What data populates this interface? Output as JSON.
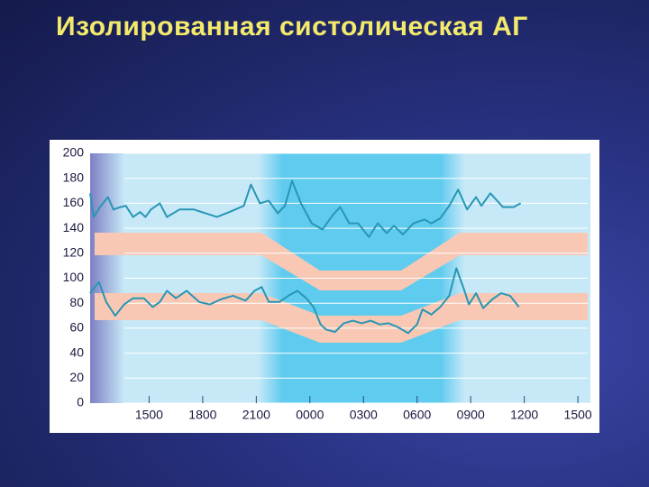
{
  "chart_data": {
    "type": "line",
    "title": "Изолированная систолическая АГ",
    "ylim": [
      0,
      200
    ],
    "yticks": [
      0,
      20,
      40,
      60,
      80,
      100,
      120,
      140,
      160,
      180,
      200
    ],
    "xlim": [
      11.7,
      39.7
    ],
    "xticks": [
      {
        "value": 15,
        "label": "1500"
      },
      {
        "value": 18,
        "label": "1800"
      },
      {
        "value": 21,
        "label": "2100"
      },
      {
        "value": 24,
        "label": "0000"
      },
      {
        "value": 27,
        "label": "0300"
      },
      {
        "value": 30,
        "label": "0600"
      },
      {
        "value": 33,
        "label": "0900"
      },
      {
        "value": 36,
        "label": "1200"
      },
      {
        "value": 39,
        "label": "1500"
      }
    ],
    "grid": true,
    "series": [
      {
        "color": "#2896b4",
        "x": [
          11.7,
          11.9,
          12.3,
          12.7,
          13.0,
          13.4,
          13.7,
          14.1,
          14.5,
          14.8,
          15.1,
          15.6,
          16.0,
          16.7,
          17.5,
          18.8,
          19.5,
          20.3,
          20.7,
          21.2,
          21.7,
          22.2,
          22.6,
          23.0,
          23.5,
          24.1,
          24.7,
          25.3,
          25.7,
          26.2,
          26.7,
          27.3,
          27.8,
          28.3,
          28.7,
          29.2,
          29.8,
          30.4,
          30.8,
          31.3,
          31.8,
          32.3,
          32.8,
          33.3,
          33.6,
          34.1,
          34.8,
          35.4,
          35.8
        ],
        "values": [
          168,
          149,
          158,
          165,
          155,
          157,
          158,
          149,
          153,
          149,
          155,
          160,
          149,
          155,
          155,
          149,
          153,
          158,
          175,
          160,
          162,
          152,
          158,
          178,
          160,
          144,
          139,
          151,
          157,
          144,
          144,
          133,
          144,
          136,
          142,
          135,
          144,
          147,
          144,
          148,
          158,
          171,
          155,
          165,
          158,
          168,
          157,
          157,
          160
        ]
      },
      {
        "color": "#2896b4",
        "x": [
          11.7,
          11.9,
          12.2,
          12.6,
          13.1,
          13.6,
          14.1,
          14.7,
          15.2,
          15.6,
          16.0,
          16.5,
          17.1,
          17.8,
          18.4,
          19.0,
          19.7,
          20.4,
          20.9,
          21.3,
          21.7,
          22.3,
          22.8,
          23.3,
          23.8,
          24.2,
          24.6,
          24.9,
          25.4,
          25.9,
          26.4,
          26.9,
          27.4,
          27.9,
          28.4,
          28.9,
          29.5,
          30.0,
          30.3,
          30.8,
          31.3,
          31.8,
          32.2,
          32.6,
          32.9,
          33.3,
          33.7,
          34.2,
          34.7,
          35.2,
          35.7
        ],
        "values": [
          88,
          92,
          97,
          81,
          70,
          79,
          84,
          84,
          77,
          81,
          90,
          84,
          90,
          81,
          79,
          83,
          86,
          82,
          90,
          93,
          81,
          81,
          86,
          90,
          84,
          77,
          63,
          59,
          57,
          64,
          66,
          64,
          66,
          63,
          64,
          61,
          56,
          63,
          75,
          71,
          77,
          86,
          108,
          92,
          79,
          88,
          76,
          83,
          88,
          86,
          77
        ]
      }
    ]
  }
}
